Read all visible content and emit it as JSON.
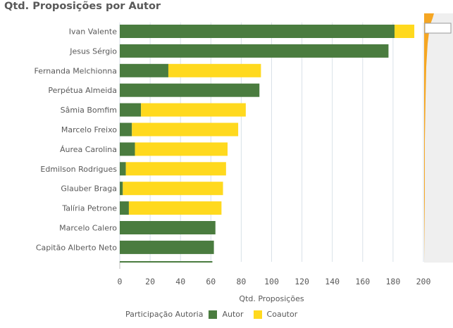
{
  "chart_data": {
    "type": "bar",
    "orientation": "horizontal",
    "stacked": true,
    "title": "Qtd. Proposições por Autor",
    "xlabel": "Qtd. Proposições",
    "ylabel": "",
    "xlim": [
      0,
      200
    ],
    "x_ticks": [
      0,
      20,
      40,
      60,
      80,
      100,
      120,
      140,
      160,
      180,
      200
    ],
    "grid": "vertical",
    "categories": [
      "Ivan Valente",
      "Jesus Sérgio",
      "Fernanda Melchionna",
      "Perpétua Almeida",
      "Sâmia Bomfim",
      "Marcelo Freixo",
      "Áurea Carolina",
      "Edmilson Rodrigues",
      "Glauber Braga",
      "Talíria Petrone",
      "Marcelo Calero",
      "Capitão Alberto Neto"
    ],
    "series": [
      {
        "name": "Autor",
        "color": "#4a7c3f",
        "values": [
          181,
          177,
          32,
          92,
          14,
          8,
          10,
          4,
          2,
          6,
          63,
          62
        ]
      },
      {
        "name": "Coautor",
        "color": "#ffd91e",
        "values": [
          13,
          0,
          61,
          0,
          69,
          70,
          61,
          66,
          66,
          61,
          0,
          0
        ]
      }
    ],
    "legend": {
      "title": "Participação Autoria",
      "position": "bottom-left"
    },
    "scroll_indicator": {
      "color": "#f5a623",
      "background": "#efefef"
    }
  }
}
